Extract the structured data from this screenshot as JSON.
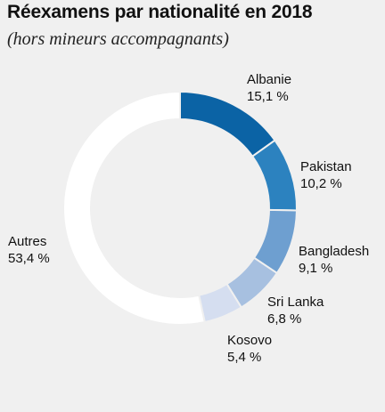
{
  "chart_data": {
    "type": "pie",
    "title": "Réexamens par nationalité en 2018",
    "subtitle": "(hors mineurs accompagnants)",
    "slices": [
      {
        "name": "Albanie",
        "value": 15.1,
        "label": "15,1 %",
        "color": "#0b63a5"
      },
      {
        "name": "Pakistan",
        "value": 10.2,
        "label": "10,2 %",
        "color": "#2c82bf"
      },
      {
        "name": "Bangladesh",
        "value": 9.1,
        "label": "9,1 %",
        "color": "#6e9fd0"
      },
      {
        "name": "Sri Lanka",
        "value": 6.8,
        "label": "6,8 %",
        "color": "#a7c0e0"
      },
      {
        "name": "Kosovo",
        "value": 5.4,
        "label": "5,4 %",
        "color": "#d5def0"
      },
      {
        "name": "Autres",
        "value": 53.4,
        "label": "53,4 %",
        "color": "#ffffff"
      }
    ]
  }
}
